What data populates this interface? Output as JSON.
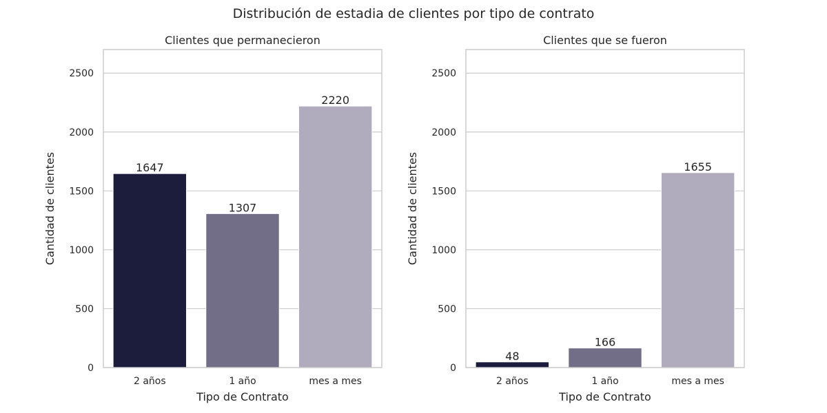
{
  "figure_title": "Distribución de estadia de clientes por tipo de contrato",
  "chart_data": [
    {
      "type": "bar",
      "title": "Clientes que permanecieron",
      "xlabel": "Tipo de Contrato",
      "ylabel": "Cantidad de clientes",
      "categories": [
        "2 años",
        "1 año",
        "mes a mes"
      ],
      "values": [
        1647,
        1307,
        2220
      ],
      "data_labels": [
        "1647",
        "1307",
        "2220"
      ],
      "ylim": [
        0,
        2700
      ],
      "yticks": [
        0,
        500,
        1000,
        1500,
        2000,
        2500
      ],
      "grid": "horizontal",
      "colors": [
        "#1c1c3c",
        "#736e87",
        "#b0acbd"
      ]
    },
    {
      "type": "bar",
      "title": "Clientes que se fueron",
      "xlabel": "Tipo de Contrato",
      "ylabel": "Cantidad de clientes",
      "categories": [
        "2 años",
        "1 año",
        "mes a mes"
      ],
      "values": [
        48,
        166,
        1655
      ],
      "data_labels": [
        "48",
        "166",
        "1655"
      ],
      "ylim": [
        0,
        2700
      ],
      "yticks": [
        0,
        500,
        1000,
        1500,
        2000,
        2500
      ],
      "grid": "horizontal",
      "colors": [
        "#1c1c3c",
        "#736e87",
        "#b0acbd"
      ]
    }
  ]
}
